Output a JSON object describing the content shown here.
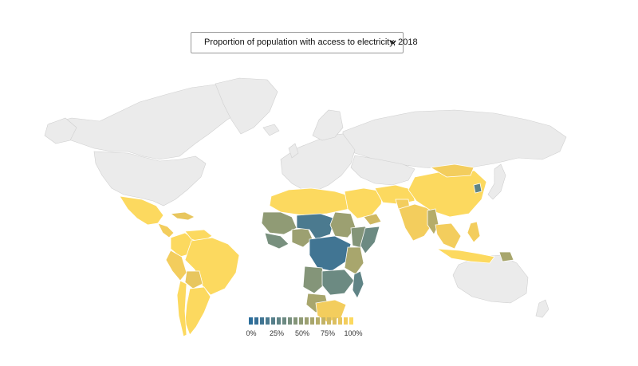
{
  "indicator_select": {
    "selected": "Proportion of population with access to electricity, 2018"
  },
  "map": {
    "no_data_color": "#ebebeb",
    "border_color": "#ffffff",
    "scale_low_color": "#2c6e9b",
    "scale_mid_color": "#8e9f7c",
    "scale_high_color": "#fcd95f"
  },
  "legend": {
    "ticks": [
      "0%",
      "25%",
      "50%",
      "75%",
      "100%"
    ],
    "swatches": [
      "#2c6e9b",
      "#366f96",
      "#417593",
      "#4b7a8f",
      "#567f8b",
      "#608486",
      "#6c8a82",
      "#78907e",
      "#849579",
      "#909b75",
      "#9ca071",
      "#a8a66d",
      "#b5ac69",
      "#c2b266",
      "#cfb862",
      "#dcbf60",
      "#e8c65e",
      "#f3cd5d",
      "#fcd95f"
    ]
  },
  "chart_data": {
    "type": "choropleth",
    "title": "",
    "scale_range": [
      0,
      100
    ]
  }
}
